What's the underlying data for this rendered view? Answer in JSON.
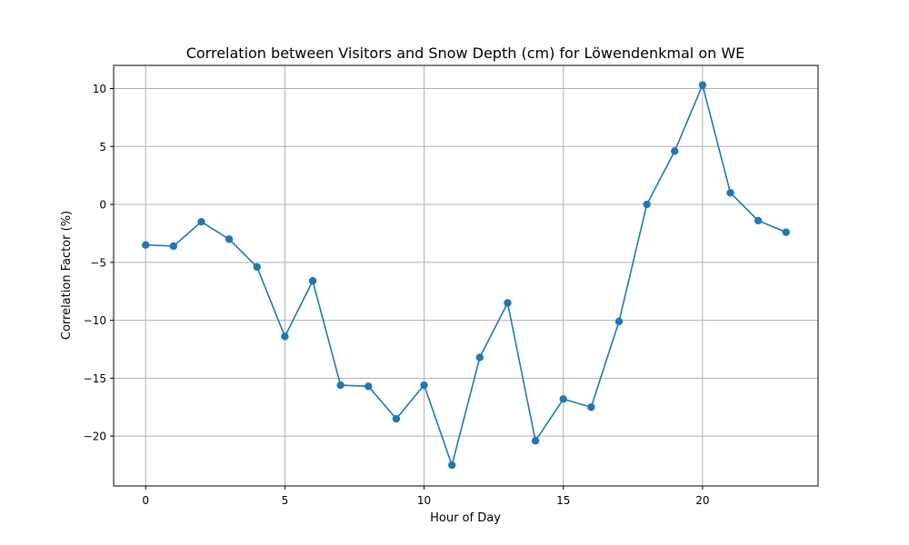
{
  "chart_data": {
    "type": "line",
    "title": "Correlation between Visitors and Snow Depth (cm) for Löwendenkmal on WE",
    "xlabel": "Hour of Day",
    "ylabel": "Correlation Factor (%)",
    "xlim": [
      -1.15,
      24.15
    ],
    "ylim": [
      -24.3,
      12.0
    ],
    "xticks": [
      0,
      5,
      10,
      15,
      20
    ],
    "yticks": [
      -20,
      -15,
      -10,
      -5,
      0,
      5,
      10
    ],
    "xtick_labels": [
      "0",
      "5",
      "10",
      "15",
      "20"
    ],
    "ytick_labels": [
      "−20",
      "−15",
      "−10",
      "−5",
      "0",
      "5",
      "10"
    ],
    "grid": true,
    "colors": {
      "series": "#1f77b4",
      "grid": "#b0b0b0",
      "axes": "#000000"
    },
    "series": [
      {
        "marker": "circle",
        "x": [
          0,
          1,
          2,
          3,
          4,
          5,
          6,
          7,
          8,
          9,
          10,
          11,
          12,
          13,
          14,
          15,
          16,
          17,
          18,
          19,
          20,
          21,
          22,
          23
        ],
        "y": [
          -3.5,
          -3.6,
          -1.5,
          -3.0,
          -5.4,
          -11.4,
          -6.6,
          -15.6,
          -15.7,
          -18.5,
          -15.6,
          -22.5,
          -13.2,
          -8.5,
          -20.4,
          -16.8,
          -17.5,
          -10.1,
          0.0,
          4.6,
          10.3,
          1.0,
          -1.4,
          -2.4
        ]
      }
    ]
  }
}
